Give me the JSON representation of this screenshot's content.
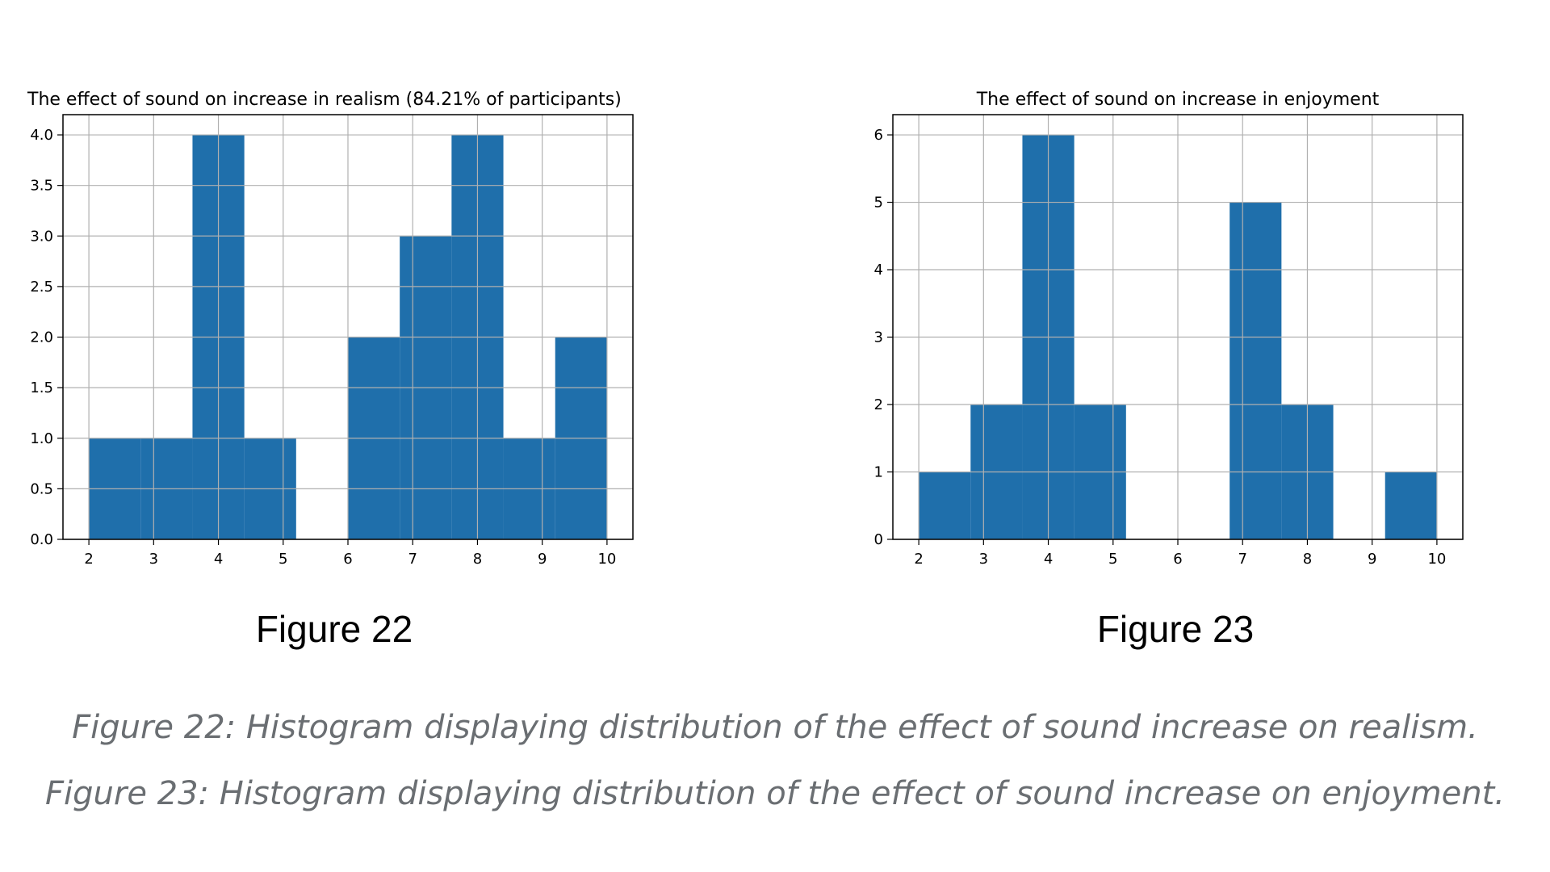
{
  "figures": [
    {
      "label": "Figure 22"
    },
    {
      "label": "Figure 23"
    }
  ],
  "captions": [
    "Figure 22: Histogram displaying distribution of the effect of sound increase on realism.",
    "Figure 23: Histogram displaying distribution of the effect of sound increase on enjoyment."
  ],
  "chart_data": [
    {
      "type": "bar",
      "title": "The effect of sound on increase in realism (84.21% of participants)",
      "xlabel": "",
      "ylabel": "",
      "xlim": [
        1.6,
        10.4
      ],
      "ylim": [
        0,
        4.2
      ],
      "x_ticks": [
        2,
        3,
        4,
        5,
        6,
        7,
        8,
        9,
        10
      ],
      "y_ticks": [
        0.0,
        0.5,
        1.0,
        1.5,
        2.0,
        2.5,
        3.0,
        3.5,
        4.0
      ],
      "y_tick_decimals": 1,
      "bins": [
        {
          "x0": 2.0,
          "x1": 2.8,
          "value": 1
        },
        {
          "x0": 2.8,
          "x1": 3.6,
          "value": 1
        },
        {
          "x0": 3.6,
          "x1": 4.4,
          "value": 4
        },
        {
          "x0": 4.4,
          "x1": 5.2,
          "value": 1
        },
        {
          "x0": 5.2,
          "x1": 6.0,
          "value": 0
        },
        {
          "x0": 6.0,
          "x1": 6.8,
          "value": 2
        },
        {
          "x0": 6.8,
          "x1": 7.6,
          "value": 3
        },
        {
          "x0": 7.6,
          "x1": 8.4,
          "value": 4
        },
        {
          "x0": 8.4,
          "x1": 9.2,
          "value": 1
        },
        {
          "x0": 9.2,
          "x1": 10.0,
          "value": 2
        }
      ],
      "grid": true,
      "color": "#1f6fab"
    },
    {
      "type": "bar",
      "title": "The effect of sound on increase in enjoyment",
      "xlabel": "",
      "ylabel": "",
      "xlim": [
        1.6,
        10.4
      ],
      "ylim": [
        0,
        6.3
      ],
      "x_ticks": [
        2,
        3,
        4,
        5,
        6,
        7,
        8,
        9,
        10
      ],
      "y_ticks": [
        0,
        1,
        2,
        3,
        4,
        5,
        6
      ],
      "y_tick_decimals": 0,
      "bins": [
        {
          "x0": 2.0,
          "x1": 2.8,
          "value": 1
        },
        {
          "x0": 2.8,
          "x1": 3.6,
          "value": 2
        },
        {
          "x0": 3.6,
          "x1": 4.4,
          "value": 6
        },
        {
          "x0": 4.4,
          "x1": 5.2,
          "value": 2
        },
        {
          "x0": 5.2,
          "x1": 6.0,
          "value": 0
        },
        {
          "x0": 6.0,
          "x1": 6.8,
          "value": 0
        },
        {
          "x0": 6.8,
          "x1": 7.6,
          "value": 5
        },
        {
          "x0": 7.6,
          "x1": 8.4,
          "value": 2
        },
        {
          "x0": 8.4,
          "x1": 9.2,
          "value": 0
        },
        {
          "x0": 9.2,
          "x1": 10.0,
          "value": 1
        }
      ],
      "grid": true,
      "color": "#1f6fab"
    }
  ]
}
